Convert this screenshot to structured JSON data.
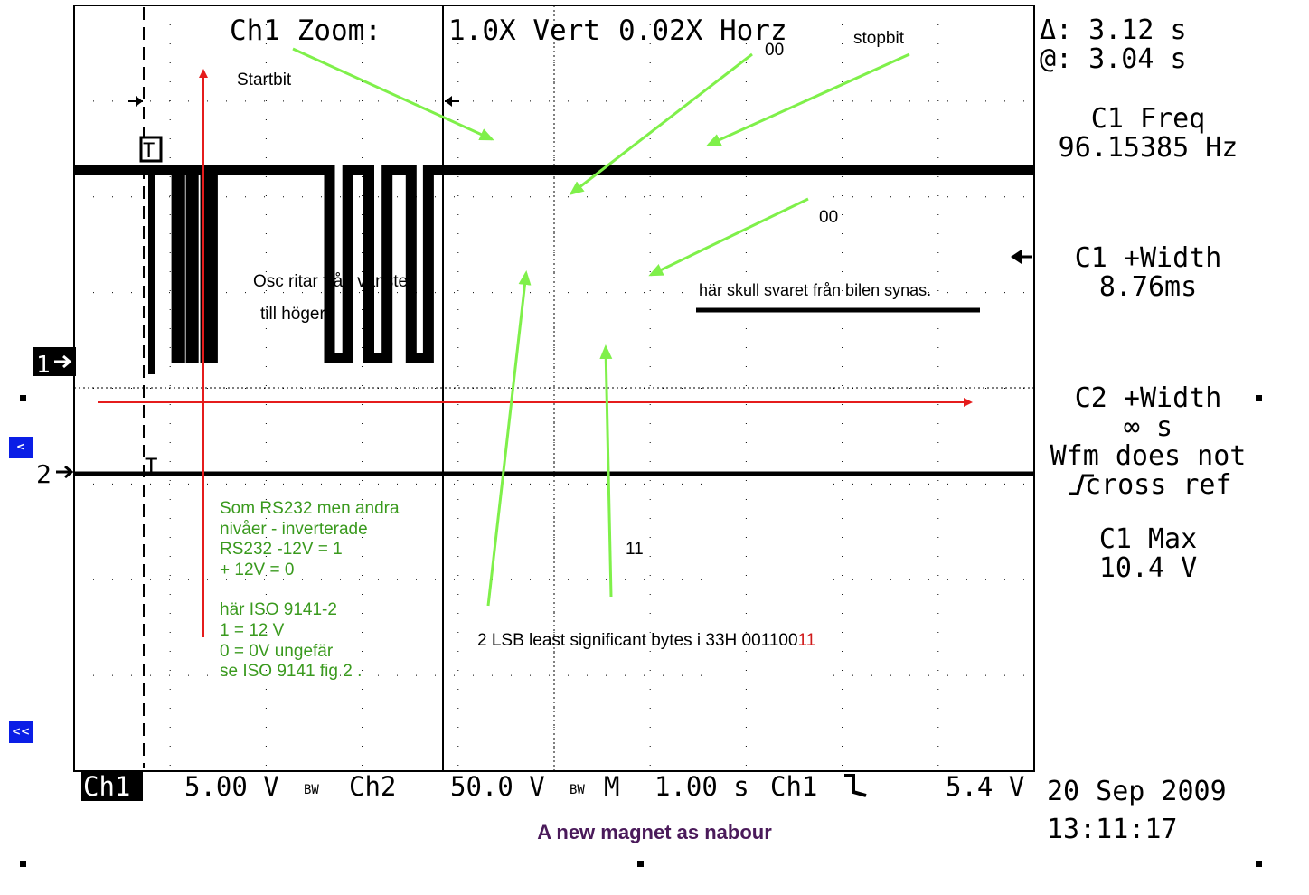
{
  "header": {
    "zoom_label": "Ch1 Zoom:",
    "vert": "1.0X Vert",
    "horz": "0.02X Horz"
  },
  "measurements": {
    "delta": "Δ: 3.12 s",
    "at": "@: 3.04 s",
    "c1_freq_label": "C1 Freq",
    "c1_freq_value": "96.15385 Hz",
    "c1_width_label": "C1 +Width",
    "c1_width_value": "8.76ms",
    "c2_width_label": "C2 +Width",
    "c2_width_value": "∞ s",
    "wfm_line1": "Wfm does not",
    "wfm_line2": "cross ref",
    "c1_max_label": "C1 Max",
    "c1_max_value": "10.4 V"
  },
  "footer": {
    "ch1": "Ch1",
    "ch1_scale": "5.00 V",
    "bw1": "BW",
    "ch2": "Ch2",
    "ch2_scale": "50.0 V",
    "bw2": "BW",
    "m": "M",
    "time_scale": "1.00 s",
    "trig_src": "Ch1",
    "trig_level": "5.4 V",
    "date": "20 Sep 2009",
    "time": "13:11:17"
  },
  "markers": {
    "ch1": "1",
    "ch2": "2",
    "trigger_t": "T"
  },
  "nav": {
    "back": "<",
    "back_all": "<<"
  },
  "annotations": {
    "startbit": "Startbit",
    "stopbit": "stopbit",
    "top_00": "00",
    "mid_00": "00",
    "osc_line1": "Osc ritar från vänster",
    "osc_line2": "till höger",
    "response": "här skull svaret från bilen synas.",
    "rs232_lines": [
      "Som RS232 men andra",
      "nivåer - inverterade",
      "RS232 -12V = 1",
      "+ 12V = 0"
    ],
    "iso_lines": [
      "här ISO 9141-2",
      "1 = 12 V",
      "0 = 0V ungefär",
      "se ISO 9141 fig 2 ."
    ],
    "label_11": "11",
    "lsb_text": "2 LSB least significant bytes i 33H  001100",
    "lsb_bits": "11"
  },
  "caption": "A new magnet as nabour",
  "colors": {
    "trace": "#000000",
    "red_arrow": "#e51c1c",
    "green_arrow": "#7ff04a",
    "green_text": "#3a9a1e",
    "caption": "#4a1a5a",
    "nav_button": "#0a1ee6"
  },
  "chart_data": {
    "type": "line",
    "title": "",
    "xlabel": "",
    "ylabel": "",
    "series": [
      {
        "name": "",
        "x": [
          0,
          0.93,
          1.03,
          1.07,
          1.07,
          1.1,
          1.1,
          1.14,
          1.14,
          1.22,
          1.22,
          1.24,
          1.24,
          1.35,
          1.35,
          1.37,
          1.37,
          1.44,
          1.44,
          1.54,
          1.54,
          1.76,
          1.76,
          2.66,
          2.66,
          2.85,
          2.85,
          3.07,
          3.07,
          3.26,
          3.26,
          3.51,
          3.51,
          3.69,
          3.69,
          10
        ],
        "y": [
          10.4,
          10.4,
          10.4,
          10.4,
          0,
          0,
          10.4,
          10.4,
          10.4,
          10.4,
          0,
          0,
          10.4,
          10.4,
          10.4,
          10.4,
          0,
          0,
          10.4,
          10.4,
          10.4,
          10.4,
          10.4,
          10.4,
          0,
          0,
          10.4,
          10.4,
          0,
          0,
          10.4,
          10.4,
          0,
          0,
          10.4,
          10.4
        ]
      }
    ]
  }
}
